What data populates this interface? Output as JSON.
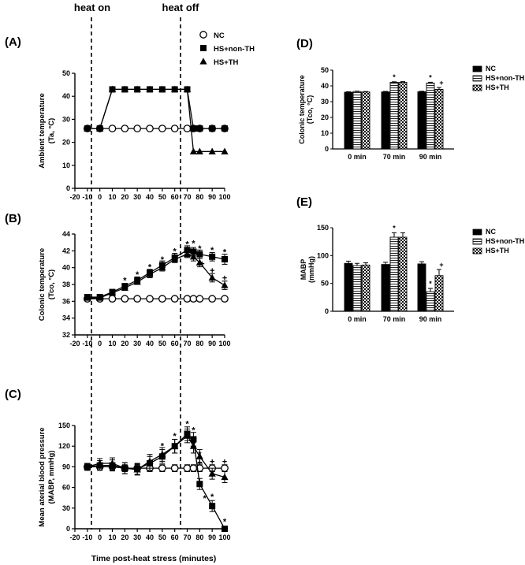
{
  "labels": {
    "heat_on": "heat on",
    "heat_off": "heat off",
    "xlabel": "Time post-heat stress (minutes)"
  },
  "chart_data": [
    {
      "id": "A",
      "type": "line",
      "panel_label": "(A)",
      "ylabel_lines": [
        "Ambient temperature",
        "(Ta, °C)"
      ],
      "ylim": [
        0,
        50
      ],
      "yticks": [
        0,
        10,
        20,
        30,
        40,
        50
      ],
      "x": [
        -10,
        0,
        10,
        20,
        30,
        40,
        50,
        60,
        70,
        75,
        80,
        90,
        100
      ],
      "xticks": [
        -20,
        -10,
        0,
        10,
        20,
        30,
        40,
        50,
        60,
        70,
        80,
        90,
        100
      ],
      "legend": [
        "NC",
        "HS+non-TH",
        "HS+TH"
      ],
      "series": [
        {
          "name": "NC",
          "marker": "open-circle",
          "values": [
            26,
            26,
            26,
            26,
            26,
            26,
            26,
            26,
            26,
            26,
            26,
            26,
            26
          ]
        },
        {
          "name": "HS+non-TH",
          "marker": "filled-square",
          "values": [
            26,
            26,
            43,
            43,
            43,
            43,
            43,
            43,
            43,
            26,
            26,
            26,
            26
          ]
        },
        {
          "name": "HS+TH",
          "marker": "filled-triangle",
          "values": [
            26,
            26,
            43,
            43,
            43,
            43,
            43,
            43,
            43,
            16,
            16,
            16,
            16
          ]
        }
      ]
    },
    {
      "id": "B",
      "type": "line",
      "panel_label": "(B)",
      "ylabel_lines": [
        "Colonic temperature",
        "(Tco, °C)"
      ],
      "ylim": [
        32,
        44
      ],
      "yticks": [
        32,
        34,
        36,
        38,
        40,
        42,
        44
      ],
      "x": [
        -10,
        0,
        10,
        20,
        30,
        40,
        50,
        60,
        70,
        75,
        80,
        90,
        100
      ],
      "xticks": [
        -20,
        -10,
        0,
        10,
        20,
        30,
        40,
        50,
        60,
        70,
        80,
        90,
        100
      ],
      "series": [
        {
          "name": "NC",
          "marker": "open-circle",
          "values": [
            36.3,
            36.3,
            36.3,
            36.3,
            36.3,
            36.3,
            36.3,
            36.3,
            36.3,
            36.3,
            36.3,
            36.3,
            36.3
          ],
          "errors": [
            0.1,
            0.1,
            0.1,
            0.1,
            0.1,
            0.1,
            0.1,
            0.1,
            0.1,
            0.1,
            0.1,
            0.1,
            0.1
          ]
        },
        {
          "name": "HS+non-TH",
          "marker": "filled-square",
          "values": [
            36.5,
            36.5,
            37.1,
            37.8,
            38.5,
            39.4,
            40.3,
            41.2,
            42.1,
            41.9,
            41.6,
            41.3,
            41.0
          ],
          "errors": [
            0.2,
            0.2,
            0.3,
            0.3,
            0.4,
            0.4,
            0.5,
            0.5,
            0.5,
            0.5,
            0.5,
            0.5,
            0.6
          ]
        },
        {
          "name": "HS+TH",
          "marker": "filled-triangle",
          "values": [
            36.4,
            36.4,
            37.0,
            37.6,
            38.3,
            39.2,
            40.0,
            41.0,
            41.6,
            41.3,
            40.6,
            38.8,
            37.9
          ],
          "errors": [
            0.2,
            0.2,
            0.3,
            0.3,
            0.3,
            0.4,
            0.4,
            0.4,
            0.4,
            0.5,
            0.5,
            0.5,
            0.5
          ]
        }
      ],
      "annotations": [
        {
          "text": "*",
          "x": 20,
          "y": 38.6
        },
        {
          "text": "*",
          "x": 30,
          "y": 39.3
        },
        {
          "text": "*",
          "x": 40,
          "y": 40.2
        },
        {
          "text": "*",
          "x": 50,
          "y": 41.1
        },
        {
          "text": "*",
          "x": 60,
          "y": 42.1
        },
        {
          "text": "*",
          "x": 70,
          "y": 42.9
        },
        {
          "text": "*",
          "x": 75,
          "y": 43.0
        },
        {
          "text": "*",
          "x": 80,
          "y": 42.4
        },
        {
          "text": "+",
          "x": 82,
          "y": 40.6
        },
        {
          "text": "*",
          "x": 90,
          "y": 42.2
        },
        {
          "text": "+",
          "x": 90,
          "y": 39.8
        },
        {
          "text": "*",
          "x": 100,
          "y": 42.0
        },
        {
          "text": "+",
          "x": 100,
          "y": 38.9
        }
      ]
    },
    {
      "id": "C",
      "type": "line",
      "panel_label": "(C)",
      "ylabel_lines": [
        "Mean aterial blood pressure",
        "(MABP, mmHg)"
      ],
      "ylim": [
        0,
        150
      ],
      "yticks": [
        0,
        30,
        60,
        90,
        120,
        150
      ],
      "x": [
        -10,
        0,
        10,
        20,
        30,
        40,
        50,
        60,
        70,
        75,
        80,
        90,
        100
      ],
      "xticks": [
        -20,
        -10,
        0,
        10,
        20,
        30,
        40,
        50,
        60,
        70,
        80,
        90,
        100
      ],
      "series": [
        {
          "name": "NC",
          "marker": "open-circle",
          "values": [
            90,
            90,
            90,
            88,
            88,
            88,
            88,
            88,
            88,
            88,
            88,
            88,
            88
          ],
          "errors": [
            5,
            5,
            5,
            5,
            5,
            5,
            5,
            5,
            5,
            5,
            5,
            5,
            5
          ]
        },
        {
          "name": "HS+non-TH",
          "marker": "filled-square",
          "values": [
            90,
            92,
            92,
            88,
            87,
            95,
            105,
            120,
            138,
            130,
            65,
            33,
            0
          ],
          "errors": [
            5,
            7,
            8,
            8,
            8,
            10,
            10,
            10,
            10,
            10,
            8,
            8,
            2
          ]
        },
        {
          "name": "HS+TH",
          "marker": "filled-triangle",
          "values": [
            90,
            95,
            95,
            88,
            86,
            98,
            108,
            120,
            135,
            120,
            105,
            80,
            75
          ],
          "errors": [
            5,
            7,
            8,
            8,
            8,
            10,
            10,
            10,
            10,
            10,
            10,
            8,
            8
          ]
        }
      ],
      "annotations": [
        {
          "text": "*",
          "x": 50,
          "y": 122
        },
        {
          "text": "*",
          "x": 60,
          "y": 136
        },
        {
          "text": "*",
          "x": 70,
          "y": 154
        },
        {
          "text": "*",
          "x": 75,
          "y": 145
        },
        {
          "text": "+",
          "x": 75,
          "y": 126
        },
        {
          "text": "*",
          "x": 80,
          "y": 110
        },
        {
          "text": "+",
          "x": 80,
          "y": 98
        },
        {
          "text": "*",
          "x": 84,
          "y": 46
        },
        {
          "text": "+",
          "x": 90,
          "y": 99
        },
        {
          "text": "*",
          "x": 90,
          "y": 48
        },
        {
          "text": "+",
          "x": 100,
          "y": 99
        },
        {
          "text": "*",
          "x": 100,
          "y": 12
        }
      ]
    },
    {
      "id": "D",
      "type": "bar",
      "panel_label": "(D)",
      "ylabel_lines": [
        "Colonic temperature",
        "(Tco, °C)"
      ],
      "ylim": [
        0,
        50
      ],
      "yticks": [
        0,
        10,
        20,
        30,
        40,
        50
      ],
      "categories": [
        "0 min",
        "70 min",
        "90 min"
      ],
      "legend": [
        "NC",
        "HS+non-TH",
        "HS+TH"
      ],
      "series": [
        {
          "name": "NC",
          "pattern": "solid",
          "values": [
            36.0,
            36.2,
            36.3
          ],
          "errors": [
            0.3,
            0.3,
            0.3
          ]
        },
        {
          "name": "HS+non-TH",
          "pattern": "hlines",
          "values": [
            36.4,
            42.2,
            41.8
          ],
          "errors": [
            0.3,
            0.4,
            0.5
          ]
        },
        {
          "name": "HS+TH",
          "pattern": "checker",
          "values": [
            36.1,
            42.3,
            37.8
          ],
          "errors": [
            0.3,
            0.4,
            1.2
          ]
        }
      ],
      "annotations": [
        {
          "text": "*",
          "category": 1,
          "series": 1,
          "symbol": "*"
        },
        {
          "text": "*",
          "category": 2,
          "series": 1,
          "symbol": "*"
        },
        {
          "text": "+",
          "category": 2,
          "series": 2,
          "symbol": "+"
        }
      ]
    },
    {
      "id": "E",
      "type": "bar",
      "panel_label": "(E)",
      "ylabel_lines": [
        "MABP",
        "(mmHg)"
      ],
      "ylim": [
        0,
        150
      ],
      "yticks": [
        0,
        50,
        100,
        150
      ],
      "categories": [
        "0 min",
        "70 min",
        "90 min"
      ],
      "legend": [
        "NC",
        "HS+non-TH",
        "HS+TH"
      ],
      "series": [
        {
          "name": "NC",
          "pattern": "solid",
          "values": [
            86,
            84,
            85
          ],
          "errors": [
            4,
            4,
            4
          ]
        },
        {
          "name": "HS+non-TH",
          "pattern": "hlines",
          "values": [
            82,
            133,
            35
          ],
          "errors": [
            4,
            8,
            6
          ]
        },
        {
          "name": "HS+TH",
          "pattern": "checker",
          "values": [
            83,
            133,
            64
          ],
          "errors": [
            4,
            8,
            11
          ]
        }
      ],
      "annotations": [
        {
          "text": "*",
          "category": 1,
          "series": 1,
          "symbol": "*"
        },
        {
          "text": "*",
          "category": 2,
          "series": 1,
          "symbol": "*"
        },
        {
          "text": "+",
          "category": 2,
          "series": 2,
          "symbol": "+"
        }
      ]
    }
  ]
}
